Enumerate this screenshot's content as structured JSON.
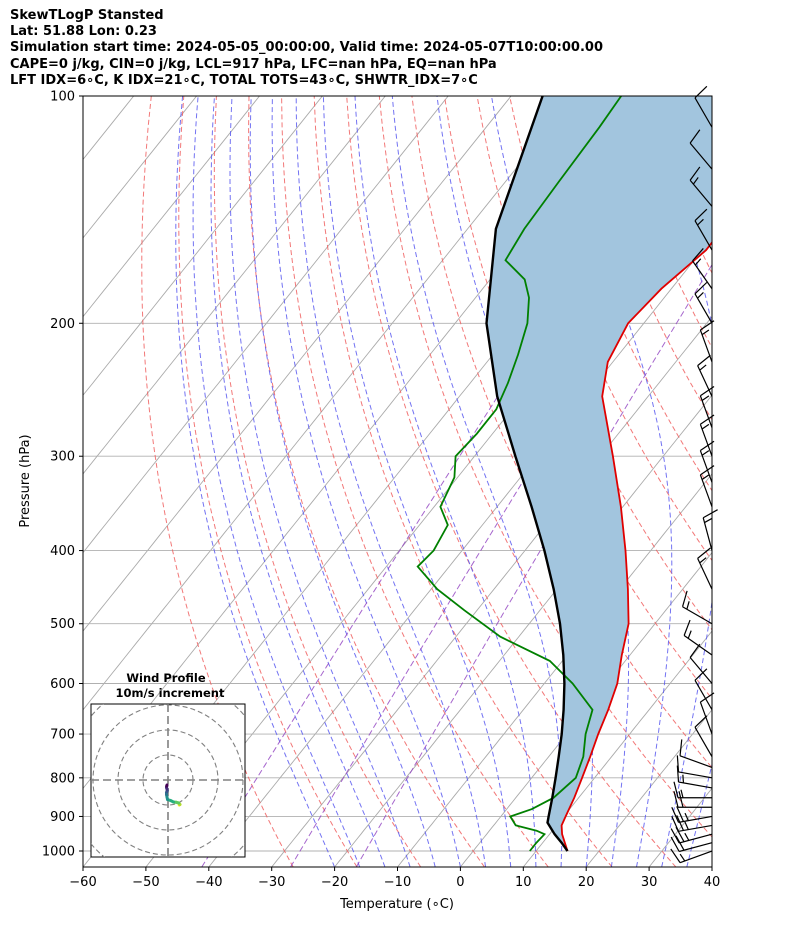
{
  "header": {
    "line1": "SkewTLogP Stansted",
    "line2": "Lat: 51.88   Lon: 0.23",
    "line3": "Simulation start time: 2024-05-05_00:00:00, Valid time: 2024-05-07T10:00:00.00",
    "line4": "CAPE=0 j/kg, CIN=0 j/kg, LCL=917 hPa, LFC=nan hPa, EQ=nan hPa",
    "line5": "LFT IDX=6∘C, K IDX=21∘C, TOTAL TOTS=43∘C, SHWTR_IDX=7∘C"
  },
  "chart_data": {
    "type": "line",
    "subtype": "skew-t log-p",
    "xlabel": "Temperature (∘C)",
    "ylabel": "Pressure (hPa)",
    "xlim": [
      -60,
      40
    ],
    "ylim": [
      1050,
      100
    ],
    "y_scale": "log",
    "x_ticks": [
      -60,
      -50,
      -40,
      -30,
      -20,
      -10,
      0,
      10,
      20,
      30,
      40
    ],
    "y_ticks": [
      1000,
      900,
      800,
      700,
      600,
      500,
      400,
      300,
      200,
      100
    ],
    "grid": true,
    "colors": {
      "temperature": "#e00000",
      "dewpoint": "#008000",
      "parcel": "#000000",
      "shade": "#a2c5de",
      "dry_adiabats": "#f06060",
      "moist_adiabats": "#5a5af0",
      "mixing_ratio": "#9040c0",
      "isotherms": "#aaaaaa"
    },
    "series": [
      {
        "p": [
          1000,
          975,
          950,
          925,
          900,
          850,
          800,
          750,
          700,
          650,
          600,
          550,
          500,
          450,
          400,
          350,
          300,
          250,
          225,
          200,
          180,
          160,
          150,
          140,
          130,
          120,
          110,
          100
        ],
        "t": [
          15,
          13.5,
          12.0,
          10.8,
          10.3,
          9.3,
          8.0,
          6.6,
          5.0,
          3.5,
          1.6,
          -1.3,
          -4.2,
          -8.7,
          -14.0,
          -20.3,
          -28.0,
          -37.3,
          -40.8,
          -42.5,
          -41.6,
          -39.4,
          -39.5,
          -40.2,
          -41.5,
          -43.0,
          -44.5,
          -45.9
        ]
      },
      {
        "p": [
          1000,
          975,
          950,
          940,
          925,
          900,
          880,
          850,
          800,
          750,
          700,
          650,
          600,
          560,
          520,
          480,
          450,
          420,
          400,
          370,
          350,
          320,
          300,
          280,
          260,
          240,
          220,
          200,
          185,
          175,
          165,
          150,
          130,
          110,
          100
        ],
        "t": [
          9,
          9,
          9.2,
          7.5,
          3.5,
          1.5,
          4.0,
          6.0,
          7.0,
          5.5,
          3.0,
          1.0,
          -5.5,
          -12.0,
          -23.0,
          -32.0,
          -39.0,
          -45.0,
          -44.5,
          -45.5,
          -49.0,
          -50.5,
          -53.0,
          -52.5,
          -52.5,
          -54.0,
          -56.0,
          -58.5,
          -61.5,
          -64.5,
          -70.0,
          -71.0,
          -71.5,
          -72.0,
          -72.5
        ]
      },
      {
        "p": [
          1000,
          975,
          950,
          917,
          900,
          850,
          800,
          750,
          700,
          650,
          600,
          550,
          500,
          450,
          400,
          350,
          300,
          250,
          200,
          150,
          100
        ],
        "t": [
          15,
          13.0,
          10.8,
          8.2,
          7.6,
          5.8,
          3.8,
          1.6,
          -0.8,
          -3.6,
          -6.8,
          -10.6,
          -15.1,
          -20.5,
          -26.9,
          -34.5,
          -43.5,
          -54.0,
          -65.0,
          -75.5,
          -85.0
        ]
      }
    ],
    "wind_barbs": [
      {
        "p": 1000,
        "spd_kt": 15,
        "dir": 250
      },
      {
        "p": 975,
        "spd_kt": 20,
        "dir": 255
      },
      {
        "p": 950,
        "spd_kt": 25,
        "dir": 255
      },
      {
        "p": 925,
        "spd_kt": 25,
        "dir": 260
      },
      {
        "p": 900,
        "spd_kt": 25,
        "dir": 260
      },
      {
        "p": 875,
        "spd_kt": 20,
        "dir": 270
      },
      {
        "p": 850,
        "spd_kt": 15,
        "dir": 270
      },
      {
        "p": 825,
        "spd_kt": 15,
        "dir": 280
      },
      {
        "p": 800,
        "spd_kt": 10,
        "dir": 280
      },
      {
        "p": 775,
        "spd_kt": 10,
        "dir": 290
      },
      {
        "p": 750,
        "spd_kt": 10,
        "dir": 330
      },
      {
        "p": 700,
        "spd_kt": 10,
        "dir": 340
      },
      {
        "p": 650,
        "spd_kt": 10,
        "dir": 330
      },
      {
        "p": 600,
        "spd_kt": 10,
        "dir": 320
      },
      {
        "p": 550,
        "spd_kt": 15,
        "dir": 305
      },
      {
        "p": 500,
        "spd_kt": 15,
        "dir": 300
      },
      {
        "p": 450,
        "spd_kt": 15,
        "dir": 335
      },
      {
        "p": 400,
        "spd_kt": 15,
        "dir": 345
      },
      {
        "p": 350,
        "spd_kt": 15,
        "dir": 340
      },
      {
        "p": 325,
        "spd_kt": 15,
        "dir": 340
      },
      {
        "p": 300,
        "spd_kt": 15,
        "dir": 340
      },
      {
        "p": 275,
        "spd_kt": 15,
        "dir": 340
      },
      {
        "p": 250,
        "spd_kt": 15,
        "dir": 335
      },
      {
        "p": 225,
        "spd_kt": 15,
        "dir": 340
      },
      {
        "p": 200,
        "spd_kt": 15,
        "dir": 330
      },
      {
        "p": 180,
        "spd_kt": 15,
        "dir": 325
      },
      {
        "p": 160,
        "spd_kt": 15,
        "dir": 330
      },
      {
        "p": 140,
        "spd_kt": 15,
        "dir": 320
      },
      {
        "p": 125,
        "spd_kt": 10,
        "dir": 320
      },
      {
        "p": 110,
        "spd_kt": 10,
        "dir": 330
      }
    ],
    "inset": {
      "title": "Wind Profile",
      "subtitle": "10m/s increment",
      "hodograph": {
        "u": [
          4.5,
          4.8,
          4.3,
          3.2,
          2.2,
          1.0,
          -0.2,
          -0.4,
          -0.6,
          -0.6,
          -0.4,
          -0.3,
          -0.4,
          -0.6,
          -0.5,
          -0.4
        ],
        "v": [
          -10.0,
          -9.8,
          -9.2,
          -8.9,
          -8.8,
          -8.2,
          -7.8,
          -6.8,
          -5.8,
          -5.0,
          -4.6,
          -4.2,
          -3.6,
          -3.0,
          -2.4,
          -2.0
        ]
      }
    }
  }
}
